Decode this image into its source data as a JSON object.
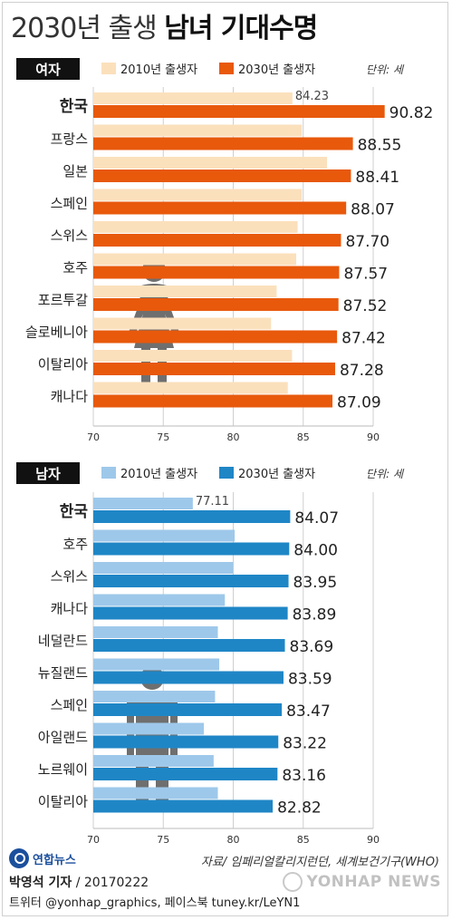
{
  "title": {
    "part1": "2030년 출생",
    "part2": "남녀 기대수명"
  },
  "chart_data": [
    {
      "type": "bar",
      "orientation": "horizontal",
      "section_label": "여자",
      "unit_label": "단위: 세",
      "categories": [
        "한국",
        "프랑스",
        "일본",
        "스페인",
        "스위스",
        "호주",
        "포르투갈",
        "슬로베니아",
        "이탈리아",
        "캐나다"
      ],
      "series": [
        {
          "name": "2010년 출생자",
          "color": "#fbe0bc",
          "values": [
            84.23,
            84.9,
            86.7,
            84.9,
            84.6,
            84.5,
            83.1,
            82.7,
            84.2,
            83.9
          ]
        },
        {
          "name": "2030년 출생자",
          "color": "#e8590c",
          "values": [
            90.82,
            88.55,
            88.41,
            88.07,
            87.7,
            87.57,
            87.52,
            87.42,
            87.28,
            87.09
          ]
        }
      ],
      "labels_light": [
        "84.23"
      ],
      "labels_dark": [
        "90.82",
        "88.55",
        "88.41",
        "88.07",
        "87.70",
        "87.57",
        "87.52",
        "87.42",
        "87.28",
        "87.09"
      ],
      "xlim": [
        70,
        90
      ],
      "ticks": [
        "70",
        "75",
        "80",
        "85",
        "90"
      ],
      "icon": "woman-figure-icon"
    },
    {
      "type": "bar",
      "orientation": "horizontal",
      "section_label": "남자",
      "unit_label": "단위: 세",
      "categories": [
        "한국",
        "호주",
        "스위스",
        "캐나다",
        "네덜란드",
        "뉴질랜드",
        "스페인",
        "아일랜드",
        "노르웨이",
        "이탈리아"
      ],
      "series": [
        {
          "name": "2010년 출생자",
          "color": "#9ec8ea",
          "values": [
            77.11,
            80.1,
            80.0,
            79.4,
            78.9,
            79.0,
            78.7,
            77.9,
            78.6,
            78.9
          ]
        },
        {
          "name": "2030년 출생자",
          "color": "#1f86c6",
          "values": [
            84.07,
            84.0,
            83.95,
            83.89,
            83.69,
            83.59,
            83.47,
            83.22,
            83.16,
            82.82
          ]
        }
      ],
      "labels_light": [
        "77.11"
      ],
      "labels_dark": [
        "84.07",
        "84.00",
        "83.95",
        "83.89",
        "83.69",
        "83.59",
        "83.47",
        "83.22",
        "83.16",
        "82.82"
      ],
      "xlim": [
        70,
        90
      ],
      "ticks": [
        "70",
        "75",
        "80",
        "85",
        "90"
      ],
      "icon": "man-figure-icon"
    }
  ],
  "footer": {
    "logo": "연합뉴스",
    "source": "자료/ 임페리얼칼리지런던, 세계보건기구(WHO)",
    "reporter": "박영석 기자",
    "date": " / 20170222",
    "social": "트위터 @yonhap_graphics, 페이스북 tuney.kr/LeYN1",
    "watermark": "YONHAP NEWS"
  }
}
